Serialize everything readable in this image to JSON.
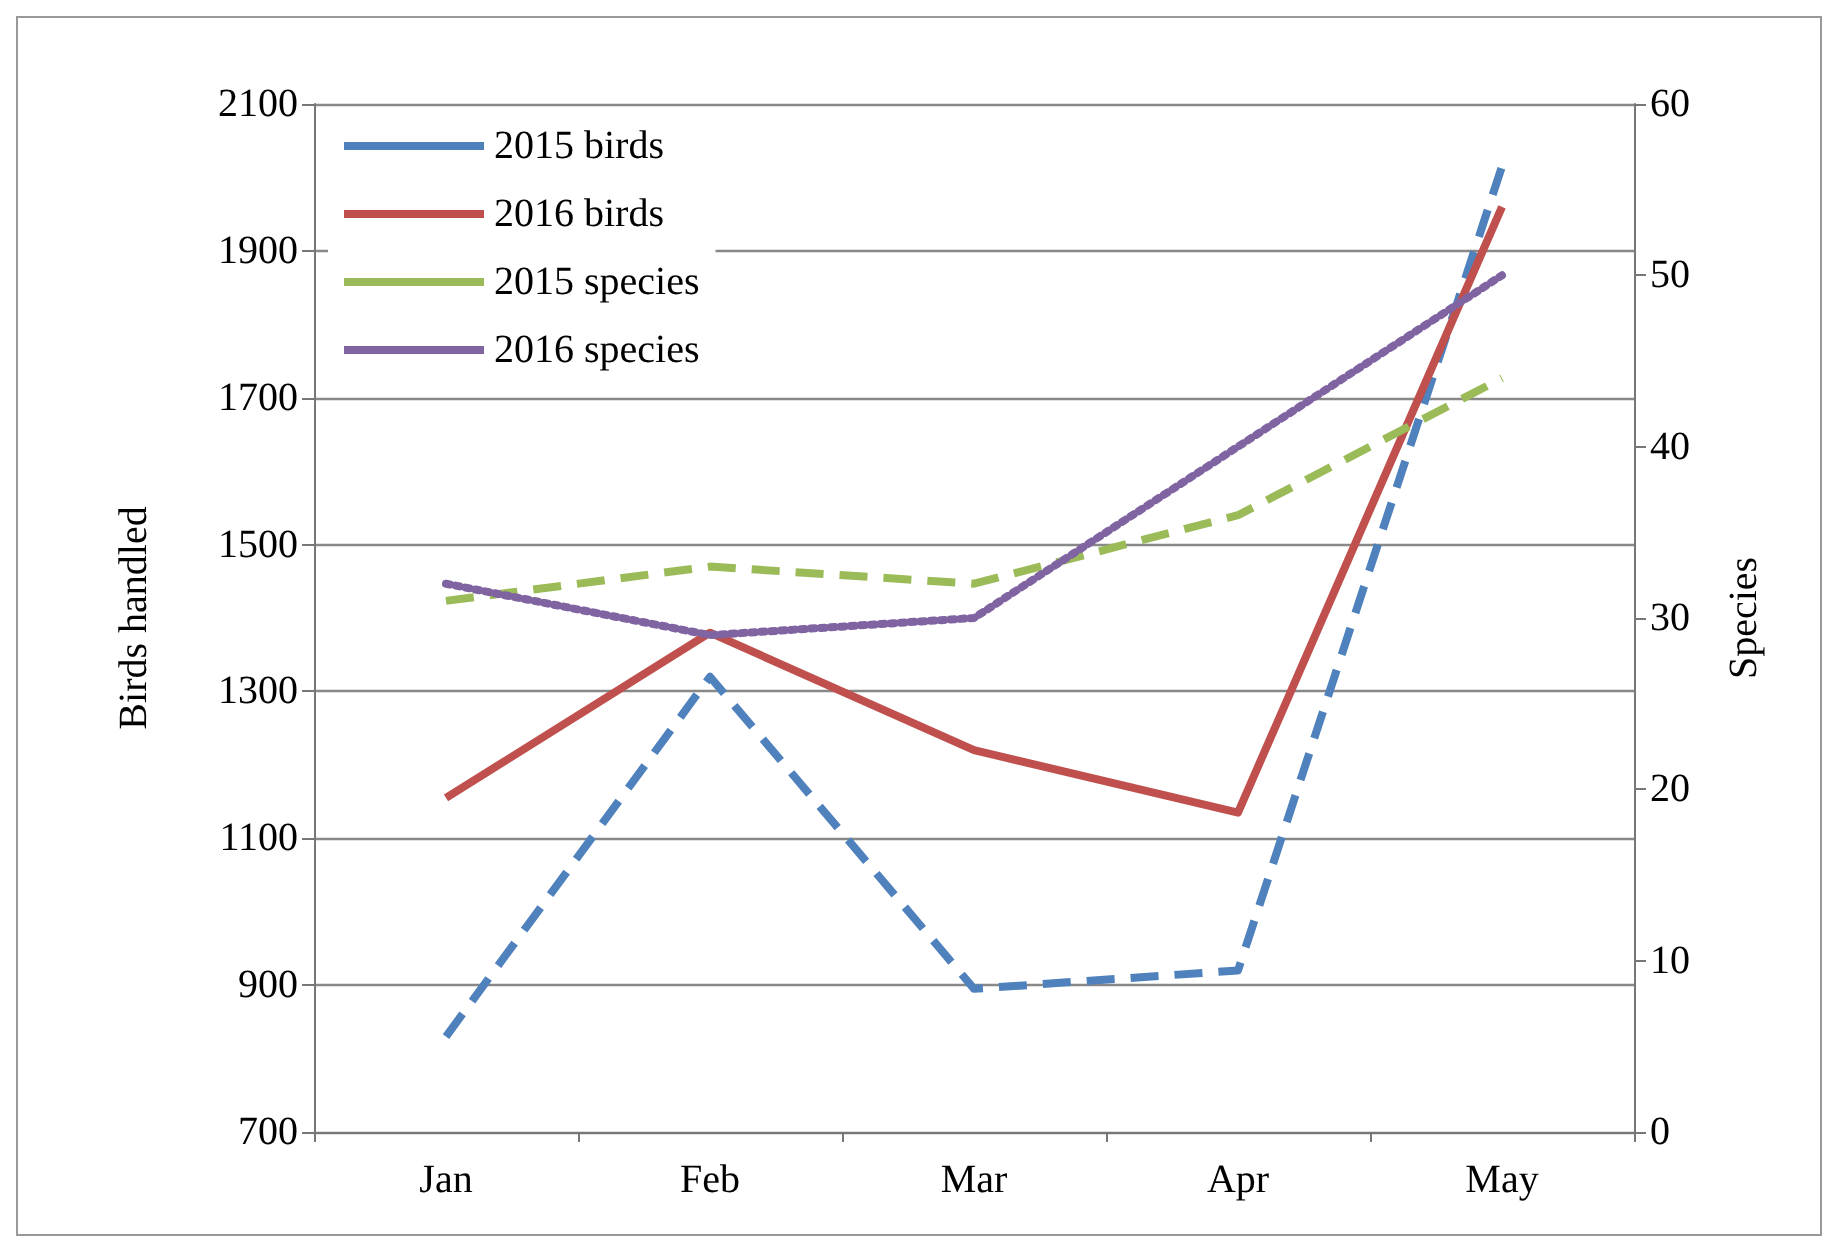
{
  "chart_data": {
    "type": "line",
    "categories": [
      "Jan",
      "Feb",
      "Mar",
      "Apr",
      "May"
    ],
    "ylabel": "Birds handled",
    "y2label": "Species",
    "ylim": [
      700,
      2100
    ],
    "yticks": [
      700,
      900,
      1100,
      1300,
      1500,
      1700,
      1900,
      2100
    ],
    "y2lim": [
      0,
      60
    ],
    "y2ticks": [
      0,
      10,
      20,
      30,
      40,
      50,
      60
    ],
    "grid": "y",
    "legend": "top left",
    "marker": "none",
    "series": [
      {
        "name": "2015 birds",
        "color": "#4f81bd",
        "line_style": "dashed",
        "values": [
          830,
          1320,
          895,
          920,
          2015
        ]
      },
      {
        "name": "2016 birds",
        "color": "#c0504d",
        "line_style": "solid",
        "values": [
          1155,
          1380,
          1220,
          1135,
          1960
        ]
      },
      {
        "name": "2015 species",
        "color": "#9bbb59",
        "line_style": "dashed",
        "axis": "y2",
        "values": [
          31,
          33,
          32,
          36,
          44
        ]
      },
      {
        "name": "2016 species",
        "color": "#8064a2",
        "line_style": "dotted",
        "axis": "y2",
        "values": [
          32,
          29,
          30,
          40,
          50
        ]
      }
    ]
  }
}
